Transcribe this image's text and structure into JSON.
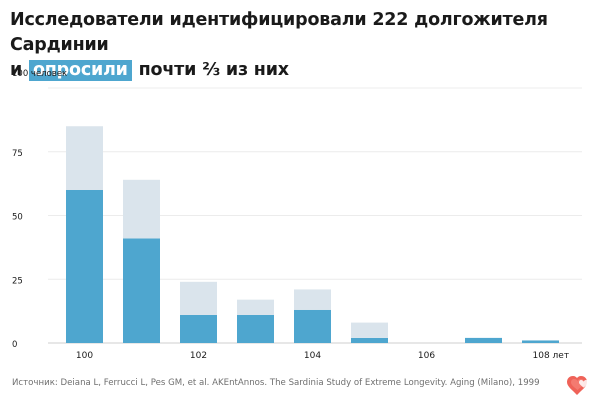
{
  "title": {
    "line1": "Исследователи идентифицировали 222 долгожителя Сардинии",
    "line2_prefix": "и",
    "line2_highlight": "опросили",
    "line2_suffix": "почти ⅔ из них"
  },
  "source": "Источник: Deiana L, Ferrucci L, Pes GM, et al. AKEntAnnos. The Sardinia Study of Extreme Longevity. Aging (Milano), 1999",
  "logo_icon": "heart-logo-icon",
  "colors": {
    "interviewed": "#4ea6cf",
    "identified": "#dae4ec",
    "highlight": "#4ea6cf",
    "logo": "#ee5a4f"
  },
  "chart_data": {
    "type": "bar",
    "stacked": true,
    "categories": [
      "100",
      "101",
      "102",
      "103",
      "104",
      "105",
      "106",
      "107",
      "108"
    ],
    "series": [
      {
        "values": [
          60,
          41,
          11,
          11,
          13,
          2,
          0,
          2,
          1
        ]
      },
      {
        "values": [
          25,
          23,
          13,
          6,
          8,
          6,
          0,
          0,
          0
        ]
      }
    ],
    "x_tick_labels": [
      "100",
      "102",
      "104",
      "106",
      "108 лет"
    ],
    "x_tick_positions": [
      "100",
      "102",
      "104",
      "106",
      "108"
    ],
    "y_ticks": [
      {
        "value": 0,
        "label": "0"
      },
      {
        "value": 25,
        "label": "25"
      },
      {
        "value": 50,
        "label": "50"
      },
      {
        "value": 75,
        "label": "75"
      },
      {
        "value": 100,
        "label": "100 человек"
      }
    ],
    "ylim": [
      0,
      100
    ],
    "grid": true,
    "legend": "none",
    "title": "",
    "xlabel": "",
    "ylabel": ""
  }
}
